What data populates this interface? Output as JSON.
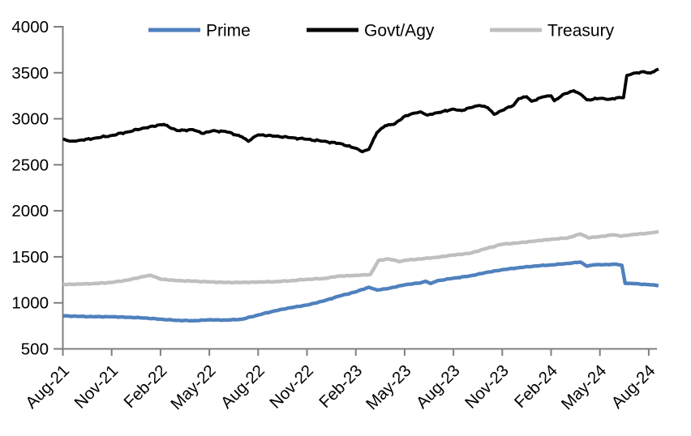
{
  "chart_data": {
    "type": "line",
    "title": "",
    "subtitle": "",
    "x_axis": {
      "tick_labels": [
        "Aug-21",
        "Nov-21",
        "Feb-22",
        "May-22",
        "Aug-22",
        "Nov-22",
        "Feb-23",
        "May-23",
        "Aug-23",
        "Nov-23",
        "Feb-24",
        "May-24",
        "Aug-24"
      ],
      "months_per_tick": 3,
      "point_x_unit": "months since Aug-2021",
      "data_end_month": 36.6
    },
    "y_axis": {
      "min": 500,
      "max": 4000,
      "step": 500,
      "tick_labels": [
        "500",
        "1000",
        "1500",
        "2000",
        "2500",
        "3000",
        "3500",
        "4000"
      ],
      "grid": false
    },
    "legend": {
      "position": "top",
      "items": [
        {
          "label": "Prime",
          "color": "#4F81BD"
        },
        {
          "label": "Govt/Agy",
          "color": "#000000"
        },
        {
          "label": "Treasury",
          "color": "#BFBFBF"
        }
      ]
    },
    "series": [
      {
        "name": "Treasury",
        "color": "#BFBFBF",
        "stroke_width": 4.4,
        "jitter": 6,
        "points": [
          [
            0,
            1200
          ],
          [
            1,
            1204
          ],
          [
            2,
            1210
          ],
          [
            3,
            1222
          ],
          [
            4,
            1248
          ],
          [
            5,
            1288
          ],
          [
            5.4,
            1300
          ],
          [
            6,
            1258
          ],
          [
            7,
            1242
          ],
          [
            8,
            1236
          ],
          [
            9,
            1228
          ],
          [
            10,
            1222
          ],
          [
            11,
            1222
          ],
          [
            12,
            1226
          ],
          [
            13,
            1230
          ],
          [
            14,
            1240
          ],
          [
            15,
            1256
          ],
          [
            16,
            1264
          ],
          [
            17,
            1292
          ],
          [
            18,
            1298
          ],
          [
            18.9,
            1308
          ],
          [
            19.4,
            1462
          ],
          [
            20,
            1478
          ],
          [
            20.7,
            1448
          ],
          [
            21,
            1462
          ],
          [
            22,
            1478
          ],
          [
            23,
            1495
          ],
          [
            24,
            1520
          ],
          [
            25,
            1538
          ],
          [
            26,
            1590
          ],
          [
            27,
            1638
          ],
          [
            28,
            1652
          ],
          [
            29,
            1672
          ],
          [
            30,
            1690
          ],
          [
            31,
            1705
          ],
          [
            31.8,
            1748
          ],
          [
            32.3,
            1707
          ],
          [
            33,
            1720
          ],
          [
            33.8,
            1740
          ],
          [
            34.3,
            1725
          ],
          [
            35,
            1742
          ],
          [
            36,
            1758
          ],
          [
            36.6,
            1772
          ]
        ]
      },
      {
        "name": "Prime",
        "color": "#4F81BD",
        "stroke_width": 4.4,
        "jitter": 5,
        "points": [
          [
            0,
            860
          ],
          [
            1,
            853
          ],
          [
            2,
            850
          ],
          [
            3,
            849
          ],
          [
            4,
            843
          ],
          [
            5,
            836
          ],
          [
            6,
            822
          ],
          [
            7,
            810
          ],
          [
            8,
            806
          ],
          [
            9,
            816
          ],
          [
            10,
            813
          ],
          [
            11,
            822
          ],
          [
            12,
            868
          ],
          [
            13,
            912
          ],
          [
            14,
            948
          ],
          [
            15,
            976
          ],
          [
            16,
            1020
          ],
          [
            17,
            1075
          ],
          [
            18,
            1120
          ],
          [
            18.8,
            1170
          ],
          [
            19.3,
            1140
          ],
          [
            20,
            1156
          ],
          [
            21,
            1196
          ],
          [
            22,
            1218
          ],
          [
            22.3,
            1235
          ],
          [
            22.6,
            1210
          ],
          [
            23,
            1240
          ],
          [
            24,
            1268
          ],
          [
            25,
            1292
          ],
          [
            26,
            1330
          ],
          [
            27,
            1360
          ],
          [
            28,
            1382
          ],
          [
            29,
            1400
          ],
          [
            30,
            1412
          ],
          [
            31,
            1428
          ],
          [
            31.8,
            1443
          ],
          [
            32.2,
            1399
          ],
          [
            32.6,
            1413
          ],
          [
            33.4,
            1416
          ],
          [
            34,
            1420
          ],
          [
            34.35,
            1408
          ],
          [
            34.55,
            1212
          ],
          [
            35,
            1210
          ],
          [
            36,
            1198
          ],
          [
            36.6,
            1188
          ]
        ]
      },
      {
        "name": "Govt/Agy",
        "color": "#000000",
        "stroke_width": 3.8,
        "jitter": 12,
        "points": [
          [
            0,
            2778
          ],
          [
            0.5,
            2756
          ],
          [
            1,
            2765
          ],
          [
            2,
            2790
          ],
          [
            3,
            2818
          ],
          [
            4,
            2858
          ],
          [
            5,
            2900
          ],
          [
            6.2,
            2940
          ],
          [
            7,
            2872
          ],
          [
            8,
            2882
          ],
          [
            8.6,
            2840
          ],
          [
            9.2,
            2870
          ],
          [
            10,
            2862
          ],
          [
            11,
            2805
          ],
          [
            11.4,
            2755
          ],
          [
            11.8,
            2808
          ],
          [
            12,
            2825
          ],
          [
            13,
            2812
          ],
          [
            14,
            2795
          ],
          [
            15,
            2778
          ],
          [
            16,
            2756
          ],
          [
            17,
            2732
          ],
          [
            18,
            2680
          ],
          [
            18.4,
            2642
          ],
          [
            18.8,
            2668
          ],
          [
            19.3,
            2850
          ],
          [
            19.8,
            2925
          ],
          [
            20.4,
            2945
          ],
          [
            21,
            3028
          ],
          [
            21.5,
            3058
          ],
          [
            22,
            3075
          ],
          [
            22.4,
            3040
          ],
          [
            23,
            3066
          ],
          [
            24,
            3105
          ],
          [
            24.5,
            3088
          ],
          [
            25,
            3120
          ],
          [
            25.6,
            3145
          ],
          [
            26.1,
            3122
          ],
          [
            26.5,
            3048
          ],
          [
            27,
            3092
          ],
          [
            27.7,
            3148
          ],
          [
            28,
            3218
          ],
          [
            28.5,
            3240
          ],
          [
            28.8,
            3190
          ],
          [
            29.5,
            3238
          ],
          [
            30,
            3250
          ],
          [
            30.2,
            3195
          ],
          [
            30.8,
            3270
          ],
          [
            31.4,
            3305
          ],
          [
            31.9,
            3255
          ],
          [
            32.2,
            3205
          ],
          [
            33,
            3222
          ],
          [
            33.6,
            3212
          ],
          [
            34.2,
            3232
          ],
          [
            34.45,
            3230
          ],
          [
            34.65,
            3470
          ],
          [
            35,
            3490
          ],
          [
            35.7,
            3512
          ],
          [
            36.1,
            3495
          ],
          [
            36.6,
            3542
          ]
        ]
      }
    ],
    "axis_color": "#7F7F7F",
    "text_color": "#000000"
  }
}
